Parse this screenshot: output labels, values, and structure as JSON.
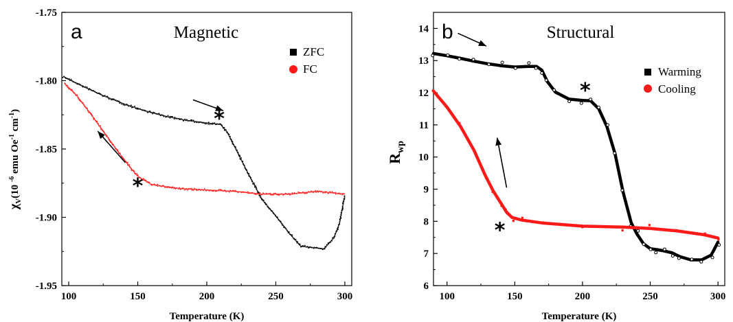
{
  "chart_data": [
    {
      "type": "scatter",
      "panel_letter": "a",
      "title": "Magnetic",
      "xlabel": "Temperature (K)",
      "ylabel_base": "χ",
      "ylabel_sub": "V",
      "ylabel_unit": "(10 ",
      "ylabel_exp": "-6",
      "ylabel_rest": " emu Oe",
      "ylabel_exp2": "-1",
      "ylabel_rest2": " cm",
      "ylabel_exp3": "-1",
      "ylabel_end": ")",
      "xlim": [
        95,
        305
      ],
      "ylim": [
        -1.95,
        -1.75
      ],
      "xticks": [
        100,
        150,
        200,
        250,
        300
      ],
      "yticks": [
        -1.95,
        -1.9,
        -1.85,
        -1.8,
        -1.75
      ],
      "ytick_labels": [
        "-1.95",
        "-1.90",
        "-1.85",
        "-1.80",
        "-1.75"
      ],
      "legend_position": "top-right",
      "series": [
        {
          "name": "ZFC",
          "color": "#000000",
          "marker": "square",
          "x": [
            96,
            110,
            125,
            140,
            155,
            170,
            185,
            200,
            210,
            215,
            220,
            230,
            240,
            250,
            260,
            268,
            275,
            285,
            292,
            296,
            300
          ],
          "y": [
            -1.797,
            -1.804,
            -1.811,
            -1.817,
            -1.822,
            -1.826,
            -1.829,
            -1.831,
            -1.832,
            -1.838,
            -1.848,
            -1.868,
            -1.887,
            -1.899,
            -1.912,
            -1.921,
            -1.922,
            -1.923,
            -1.915,
            -1.905,
            -1.884
          ]
        },
        {
          "name": "FC",
          "color": "#ff1a1a",
          "marker": "circle",
          "x": [
            97,
            105,
            115,
            125,
            135,
            145,
            150,
            160,
            180,
            200,
            220,
            240,
            260,
            270,
            280,
            290,
            300
          ],
          "y": [
            -1.802,
            -1.81,
            -1.823,
            -1.837,
            -1.851,
            -1.864,
            -1.87,
            -1.876,
            -1.879,
            -1.88,
            -1.881,
            -1.883,
            -1.883,
            -1.882,
            -1.881,
            -1.882,
            -1.883
          ]
        }
      ],
      "annotations": [
        {
          "type": "asterisk",
          "x": 209,
          "y": -1.826,
          "color": "#b30000"
        },
        {
          "type": "asterisk",
          "x": 150,
          "y": -1.875,
          "color": "#1010d8"
        },
        {
          "type": "arrow",
          "from": [
            190,
            -1.814
          ],
          "to": [
            212,
            -1.822
          ]
        },
        {
          "type": "arrow",
          "from": [
            141,
            -1.86
          ],
          "to": [
            121,
            -1.837
          ]
        }
      ]
    },
    {
      "type": "scatter",
      "panel_letter": "b",
      "title": "Structural",
      "xlabel": "Temperature (K)",
      "ylabel_base": "R",
      "ylabel_sub": "wp",
      "xlim": [
        90,
        305
      ],
      "ylim": [
        6,
        14.5
      ],
      "xticks": [
        100,
        150,
        200,
        250,
        300
      ],
      "yticks": [
        6,
        7,
        8,
        9,
        10,
        11,
        12,
        13,
        14
      ],
      "ytick_labels": [
        "6",
        "7",
        "8",
        "9",
        "10",
        "11",
        "12",
        "13",
        "14"
      ],
      "legend_position": "top-right",
      "series": [
        {
          "name": "Warming",
          "color": "#000000",
          "marker": "square",
          "x": [
            90,
            100,
            110,
            120,
            130,
            140,
            150,
            160,
            166,
            170,
            174,
            180,
            190,
            200,
            206,
            212,
            218,
            224,
            230,
            236,
            240,
            245,
            250,
            255,
            260,
            266,
            272,
            280,
            288,
            295,
            300
          ],
          "y": [
            13.22,
            13.15,
            13.07,
            12.98,
            12.9,
            12.84,
            12.8,
            12.82,
            12.82,
            12.7,
            12.35,
            12.02,
            11.8,
            11.76,
            11.75,
            11.5,
            10.95,
            10.1,
            8.9,
            7.95,
            7.62,
            7.3,
            7.15,
            7.12,
            7.08,
            7.02,
            6.9,
            6.8,
            6.8,
            6.95,
            7.35
          ]
        },
        {
          "name": "Cooling",
          "color": "#ff1a1a",
          "marker": "circle",
          "x": [
            90,
            100,
            110,
            120,
            128,
            134,
            140,
            144,
            148,
            155,
            170,
            200,
            230,
            250,
            270,
            290,
            300
          ],
          "y": [
            12.05,
            11.55,
            10.95,
            10.2,
            9.45,
            8.95,
            8.55,
            8.28,
            8.12,
            8.04,
            7.95,
            7.85,
            7.82,
            7.78,
            7.7,
            7.58,
            7.48
          ]
        }
      ],
      "annotations": [
        {
          "type": "asterisk",
          "x": 202,
          "y": 12.15,
          "color": "#b30000"
        },
        {
          "type": "asterisk",
          "x": 139,
          "y": 7.8,
          "color": "#1010d8"
        },
        {
          "type": "arrow",
          "from": [
            108,
            13.85
          ],
          "to": [
            129,
            13.45
          ]
        },
        {
          "type": "arrow",
          "from": [
            144,
            9.05
          ],
          "to": [
            137,
            10.6
          ]
        }
      ]
    }
  ]
}
